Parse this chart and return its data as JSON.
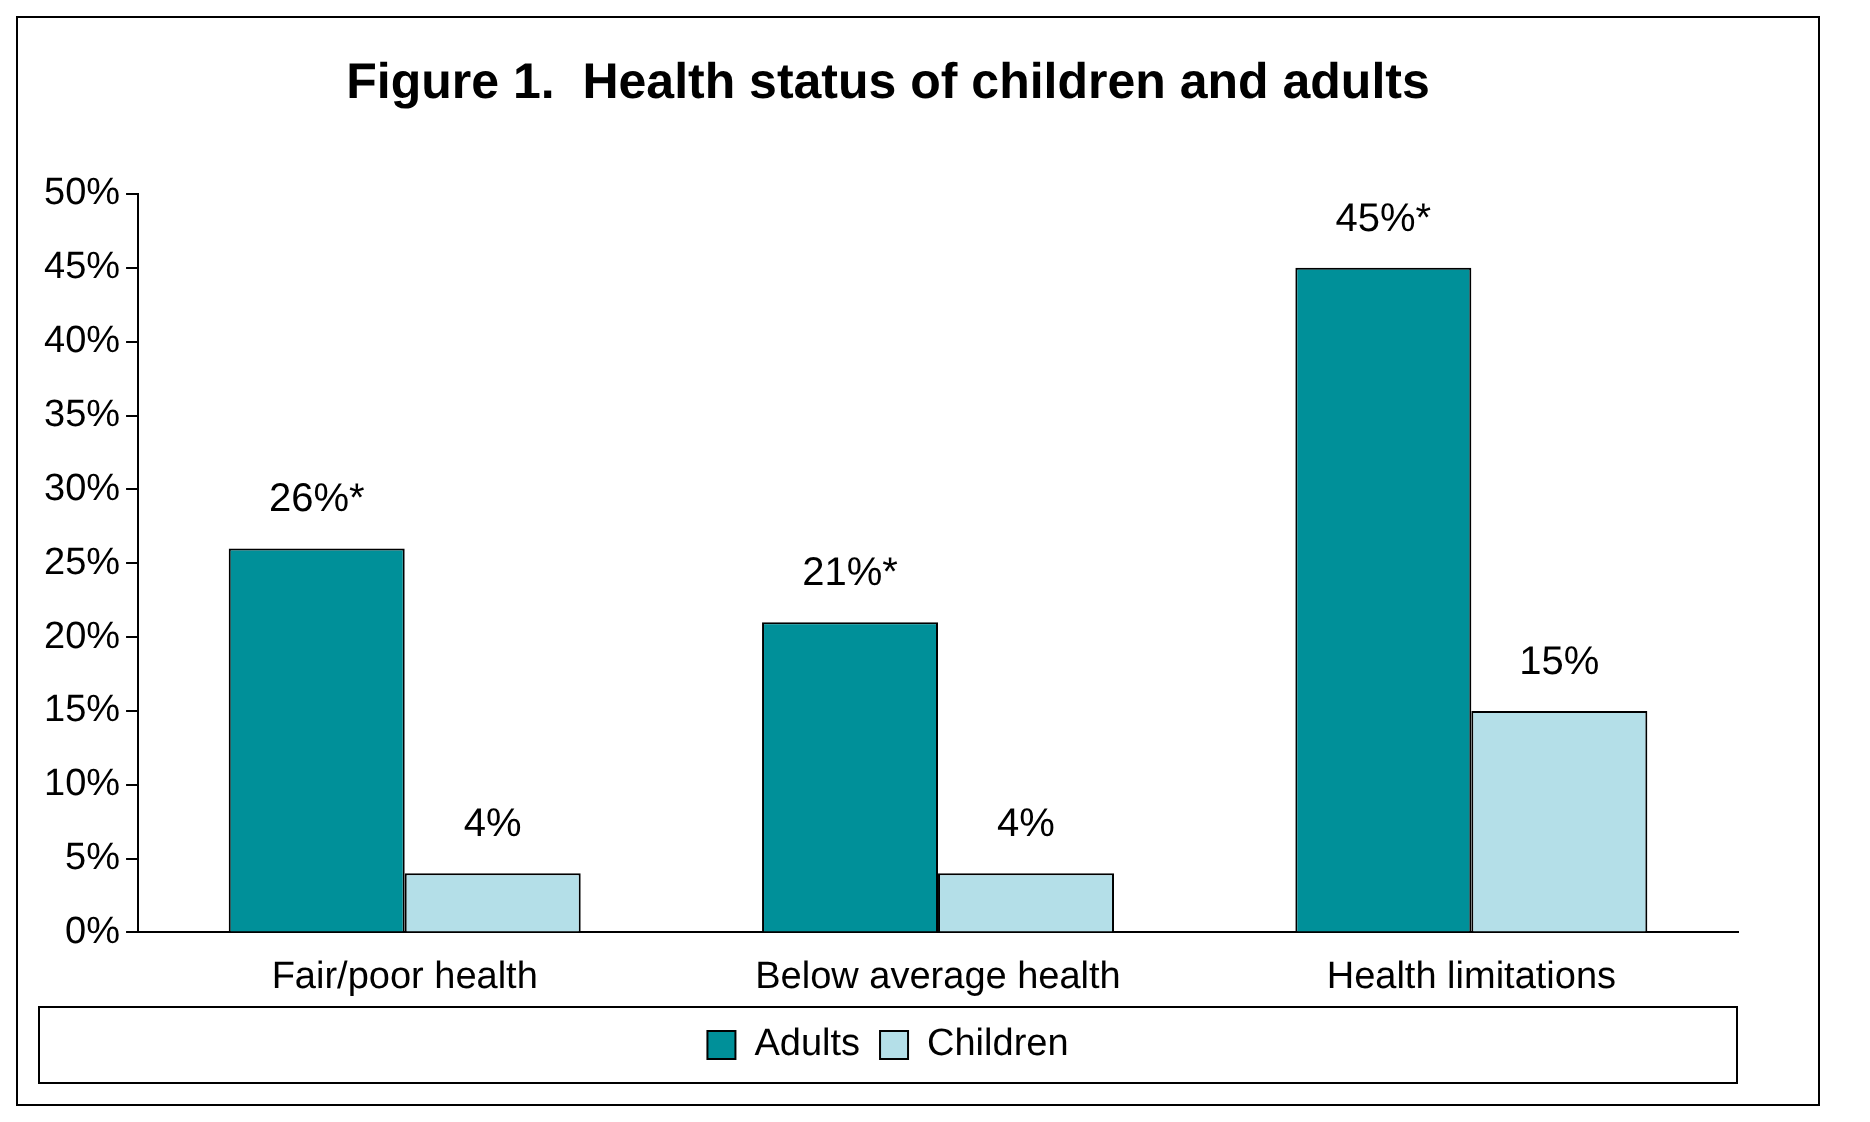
{
  "chart_data": {
    "type": "bar",
    "title": "Figure 1.  Health status of children and adults",
    "categories": [
      "Fair/poor health",
      "Below average health",
      "Health limitations"
    ],
    "series": [
      {
        "name": "Adults",
        "color": "#009099",
        "values": [
          26,
          21,
          45
        ],
        "value_labels": [
          "26%*",
          "21%*",
          "45%*"
        ]
      },
      {
        "name": "Children",
        "color": "#b4dfe8",
        "values": [
          4,
          4,
          15
        ],
        "value_labels": [
          "4%",
          "4%",
          "15%"
        ]
      }
    ],
    "ylim": [
      0,
      50
    ],
    "yticks": [
      {
        "value": 0,
        "label": "0%"
      },
      {
        "value": 5,
        "label": "5%"
      },
      {
        "value": 10,
        "label": "10%"
      },
      {
        "value": 15,
        "label": "15%"
      },
      {
        "value": 20,
        "label": "20%"
      },
      {
        "value": 25,
        "label": "25%"
      },
      {
        "value": 30,
        "label": "30%"
      },
      {
        "value": 35,
        "label": "35%"
      },
      {
        "value": 40,
        "label": "40%"
      },
      {
        "value": 45,
        "label": "45%"
      },
      {
        "value": 50,
        "label": "50%"
      }
    ],
    "grid": false,
    "legend": "bottom"
  }
}
